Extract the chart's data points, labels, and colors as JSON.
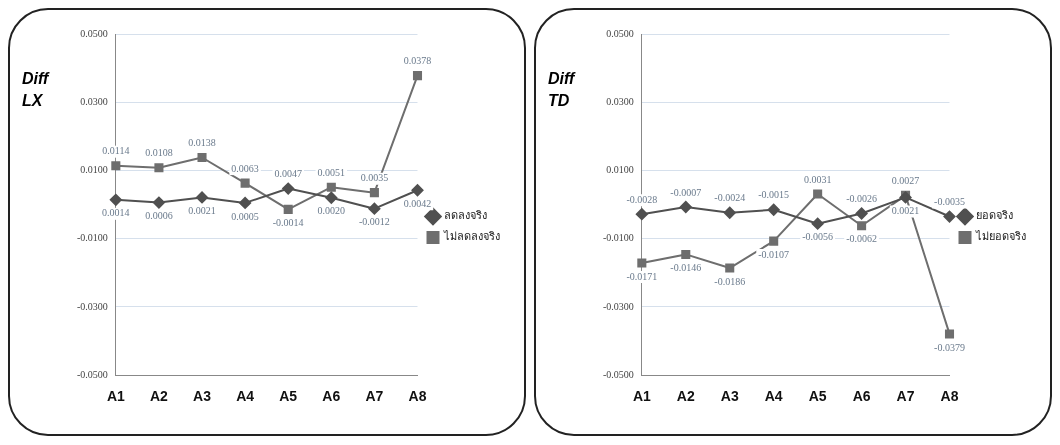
{
  "chart_data": [
    {
      "type": "line",
      "ylabel": "Diff LX",
      "categories": [
        "A1",
        "A2",
        "A3",
        "A4",
        "A5",
        "A6",
        "A7",
        "A8"
      ],
      "series": [
        {
          "name": "ลดลงจริง",
          "color": "#505050",
          "marker": "diamond",
          "values": [
            0.0014,
            0.0006,
            0.0021,
            0.0005,
            0.0047,
            0.002,
            -0.0012,
            0.0042
          ],
          "value_labels": [
            "0.0014",
            "0.0006",
            "0.0021",
            "0.0005",
            "0.0047",
            "0.0020",
            "-0.0012",
            "0.0042"
          ]
        },
        {
          "name": "ไม่ลดลงจริง",
          "color": "#6e6e6e",
          "marker": "square",
          "values": [
            0.0114,
            0.0108,
            0.0138,
            0.0063,
            -0.0014,
            0.0051,
            0.0035,
            0.0378
          ],
          "value_labels": [
            "0.0114",
            "0.0108",
            "0.0138",
            "0.0063",
            "-0.0014",
            "0.0051",
            "0.0035",
            "0.0378"
          ]
        }
      ],
      "ylim": [
        -0.05,
        0.05
      ],
      "yticks": [
        {
          "value": -0.05,
          "label": "-0.0500"
        },
        {
          "value": -0.03,
          "label": "-0.0300"
        },
        {
          "value": -0.01,
          "label": "-0.0100"
        },
        {
          "value": 0.01,
          "label": "0.0100"
        },
        {
          "value": 0.03,
          "label": "0.0300"
        },
        {
          "value": 0.05,
          "label": "0.0500"
        }
      ],
      "grid": "y",
      "legend": "right"
    },
    {
      "type": "line",
      "ylabel": "Diff TD",
      "categories": [
        "A1",
        "A2",
        "A3",
        "A4",
        "A5",
        "A6",
        "A7",
        "A8"
      ],
      "series": [
        {
          "name": "ยอดจริง",
          "color": "#505050",
          "marker": "diamond",
          "values": [
            -0.0028,
            -0.0007,
            -0.0024,
            -0.0015,
            -0.0056,
            -0.0026,
            0.0021,
            -0.0035
          ],
          "value_labels": [
            "-0.0028",
            "-0.0007",
            "-0.0024",
            "-0.0015",
            "-0.0056",
            "-0.0026",
            "0.0021",
            "-0.0035"
          ]
        },
        {
          "name": "ไม่ยอดจริง",
          "color": "#6e6e6e",
          "marker": "square",
          "values": [
            -0.0171,
            -0.0146,
            -0.0186,
            -0.0107,
            0.0031,
            -0.0062,
            0.0027,
            -0.0379
          ],
          "value_labels": [
            "-0.0171",
            "-0.0146",
            "-0.0186",
            "-0.0107",
            "0.0031",
            "-0.0062",
            "0.0027",
            "-0.0379"
          ]
        }
      ],
      "ylim": [
        -0.05,
        0.05
      ],
      "yticks": [
        {
          "value": -0.05,
          "label": "-0.0500"
        },
        {
          "value": -0.03,
          "label": "-0.0300"
        },
        {
          "value": -0.01,
          "label": "-0.0100"
        },
        {
          "value": 0.01,
          "label": "0.0100"
        },
        {
          "value": 0.03,
          "label": "0.0300"
        },
        {
          "value": 0.05,
          "label": "0.0500"
        }
      ],
      "grid": "y",
      "legend": "right"
    }
  ]
}
